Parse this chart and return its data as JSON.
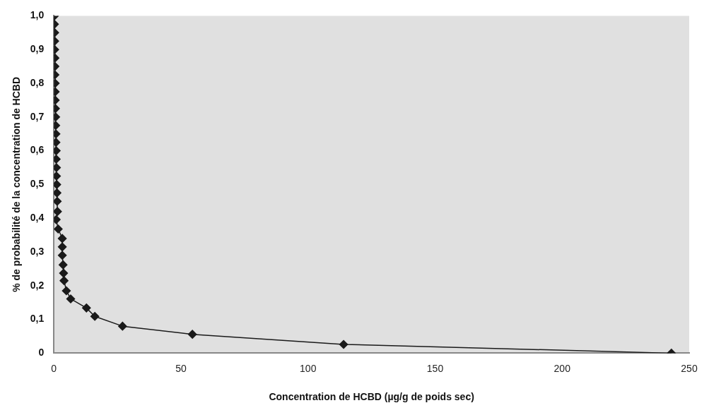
{
  "chart_data": {
    "type": "line",
    "xlabel": "Concentration de HCBD (µg/g de poids sec)",
    "ylabel": "% de probabilité de la concentration de HCBD",
    "x": [
      0.2,
      0.2,
      0.3,
      0.3,
      0.3,
      0.4,
      0.4,
      0.4,
      0.5,
      0.5,
      0.5,
      0.6,
      0.7,
      0.7,
      0.8,
      0.8,
      0.9,
      0.9,
      1.0,
      1.0,
      1.1,
      1.2,
      1.3,
      1.4,
      0.9,
      1.7,
      3.3,
      3.3,
      3.3,
      3.6,
      3.8,
      4.0,
      4.9,
      6.6,
      12.8,
      16.1,
      27,
      54.5,
      114,
      243
    ],
    "series": [
      {
        "color": "#1a1a1a",
        "values": [
          1.0,
          0.975,
          0.95,
          0.925,
          0.9,
          0.875,
          0.85,
          0.825,
          0.8,
          0.775,
          0.75,
          0.725,
          0.7,
          0.675,
          0.65,
          0.625,
          0.6,
          0.575,
          0.55,
          0.525,
          0.5,
          0.475,
          0.45,
          0.42,
          0.396,
          0.368,
          0.34,
          0.315,
          0.29,
          0.262,
          0.237,
          0.215,
          0.185,
          0.161,
          0.134,
          0.109,
          0.08,
          0.056,
          0.026,
          0.0
        ]
      }
    ],
    "xlim": [
      0,
      250
    ],
    "xticks": [
      0,
      50,
      100,
      150,
      200,
      250
    ],
    "ylim": [
      0,
      1.0
    ],
    "yticks": [
      0,
      {
        "value": 0.1,
        "label": "0,1"
      },
      {
        "value": 0.2,
        "label": "0,2"
      },
      {
        "value": 0.3,
        "label": "0,3"
      },
      {
        "value": 0.4,
        "label": "0,4"
      },
      {
        "value": 0.5,
        "label": "0,5"
      },
      {
        "value": 0.6,
        "label": "0,6"
      },
      {
        "value": 0.7,
        "label": "0,7"
      },
      {
        "value": 0.8,
        "label": "0,8"
      },
      {
        "value": 0.9,
        "label": "0,9"
      },
      {
        "value": 1.0,
        "label": "1,0"
      }
    ],
    "grid": false,
    "legend": false,
    "marker": "diamond",
    "line_style": "solid"
  }
}
